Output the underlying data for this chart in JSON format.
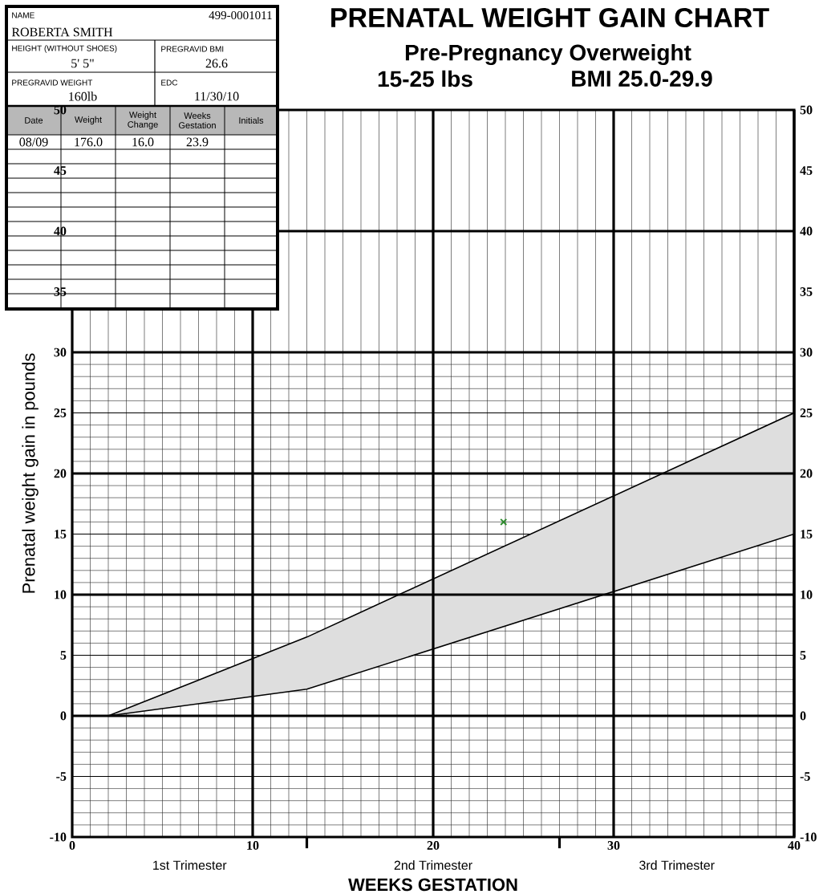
{
  "chart_data": [
    {
      "type": "line",
      "title": "PRENATAL WEIGHT GAIN CHART",
      "subtitle": "Pre-Pregnancy Overweight",
      "xlabel": "WEEKS GESTATION",
      "ylabel": "Prenatal weight gain in pounds",
      "annotations": [
        "1st Trimester",
        "2nd Trimester",
        "3rd Trimester",
        "15-25 lbs",
        "BMI 25.0-29.9"
      ],
      "xlim": [
        0,
        40
      ],
      "xticks": [
        0,
        10,
        {
          "value": 13,
          "label": null
        },
        20,
        {
          "value": 27,
          "label": null
        },
        30,
        40
      ],
      "ylim": [
        -10,
        50
      ],
      "yticks": [
        -10,
        -5,
        0,
        5,
        10,
        15,
        20,
        25,
        30,
        35,
        40,
        45,
        50
      ],
      "y2lim": [
        -10,
        50
      ],
      "y2ticks": [
        -10,
        -5,
        0,
        5,
        10,
        15,
        20,
        25,
        30,
        35,
        40,
        45,
        50
      ],
      "grid": true,
      "series": [
        {
          "type": "line",
          "x": [
            2,
            13,
            40
          ],
          "values": [
            0,
            6.5,
            25
          ],
          "lower": [
            0,
            2.2,
            15
          ],
          "upper": [
            0,
            6.5,
            25
          ],
          "color": "#000000"
        },
        {
          "type": "line",
          "x": [
            2,
            13,
            40
          ],
          "values": [
            0,
            2.2,
            15
          ],
          "color": "#000000"
        },
        {
          "type": "scatter",
          "x": [
            23.9
          ],
          "values": [
            16
          ],
          "color": "#2e8b2e",
          "marker": "cross"
        }
      ]
    },
    {
      "type": "other",
      "annotations": [
        "NAME",
        "499-0001011",
        "ROBERTA SMITH",
        "HEIGHT (WITHOUT SHOES)",
        "5' 5\"",
        "PREGRAVID BMI",
        "26.6",
        "PREGRAVID WEIGHT",
        "160lb",
        "EDC",
        "11/30/10",
        "Date",
        "Weight",
        "Weight Change",
        "Weeks Gestation",
        "Initials",
        "08/09",
        "176.0",
        "16.0",
        "23.9"
      ]
    }
  ]
}
